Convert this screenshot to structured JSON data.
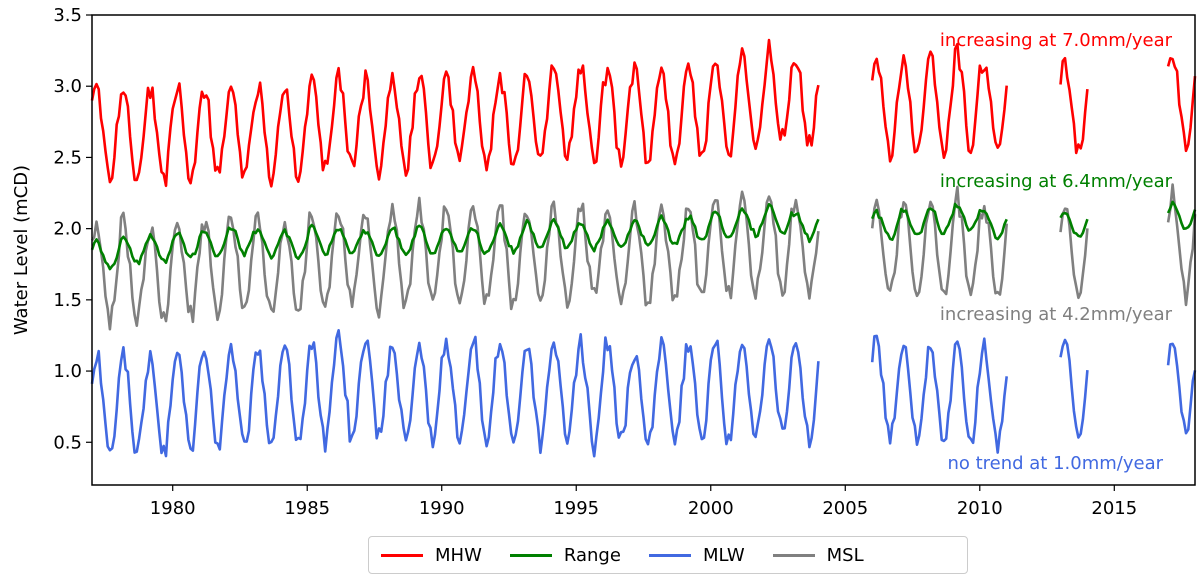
{
  "chart_data": {
    "type": "line",
    "title": "",
    "xlabel": "",
    "ylabel": "Water Level (mCD)",
    "xlim": [
      1977.0,
      2018.0
    ],
    "ylim": [
      0.2,
      3.5
    ],
    "x_ticks": [
      1980,
      1985,
      1990,
      1995,
      2000,
      2005,
      2010,
      2015
    ],
    "y_ticks": [
      0.5,
      1.0,
      1.5,
      2.0,
      2.5,
      3.0,
      3.5
    ],
    "y_tick_labels": [
      "0.5",
      "1.0",
      "1.5",
      "2.0",
      "2.5",
      "3.0",
      "3.5"
    ],
    "grid": false,
    "legend_position": "bottom-center",
    "sampling": "monthly",
    "data_segments": [
      [
        1977.0,
        2004.0
      ],
      [
        2006.0,
        2011.0
      ],
      [
        2013.0,
        2014.0
      ],
      [
        2017.0,
        2018.0
      ]
    ],
    "series": [
      {
        "name": "MHW",
        "color": "#ff0000",
        "mean": 2.75,
        "amplitude": 0.32,
        "trend_mm_per_year": 7.0,
        "seasonal_peak_month": 2,
        "year_values": [
          2.68,
          2.66,
          2.66,
          2.67,
          2.69,
          2.7,
          2.68,
          2.67,
          2.72,
          2.74,
          2.73,
          2.74,
          2.76,
          2.78,
          2.77,
          2.76,
          2.78,
          2.8,
          2.82,
          2.79,
          2.78,
          2.8,
          2.84,
          2.86,
          2.9,
          2.93,
          2.88,
          null,
          null,
          2.87,
          2.85,
          2.87,
          2.91,
          2.84,
          null,
          null,
          2.86,
          null,
          null,
          null,
          2.92
        ]
      },
      {
        "name": "Range",
        "color": "#008000",
        "mean": 1.92,
        "amplitude": 0.09,
        "trend_mm_per_year": 6.4,
        "seasonal_peak_month": 2,
        "year_values": [
          1.81,
          1.85,
          1.86,
          1.88,
          1.9,
          1.92,
          1.9,
          1.89,
          1.92,
          1.91,
          1.9,
          1.91,
          1.92,
          1.92,
          1.91,
          1.93,
          1.95,
          1.96,
          1.95,
          1.96,
          1.97,
          1.98,
          2.0,
          2.03,
          2.05,
          2.06,
          2.02,
          null,
          null,
          2.02,
          2.04,
          2.06,
          2.08,
          2.03,
          null,
          null,
          2.03,
          null,
          null,
          null,
          2.08
        ]
      },
      {
        "name": "MLW",
        "color": "#4169e1",
        "mean": 0.83,
        "amplitude": 0.34,
        "trend_mm_per_year": 1.0,
        "seasonal_peak_month": 2,
        "year_values": [
          0.78,
          0.78,
          0.77,
          0.8,
          0.81,
          0.82,
          0.8,
          0.82,
          0.86,
          0.88,
          0.87,
          0.85,
          0.86,
          0.87,
          0.86,
          0.85,
          0.85,
          0.86,
          0.84,
          0.85,
          0.81,
          0.84,
          0.86,
          0.85,
          0.88,
          0.9,
          0.86,
          null,
          null,
          0.87,
          0.85,
          0.84,
          0.86,
          0.82,
          null,
          null,
          0.86,
          null,
          null,
          null,
          0.88
        ]
      },
      {
        "name": "MSL",
        "color": "#808080",
        "mean": 1.79,
        "amplitude": 0.33,
        "trend_mm_per_year": 4.2,
        "seasonal_peak_month": 2,
        "year_values": [
          1.7,
          1.7,
          1.7,
          1.72,
          1.74,
          1.75,
          1.73,
          1.73,
          1.78,
          1.8,
          1.79,
          1.79,
          1.81,
          1.82,
          1.81,
          1.8,
          1.81,
          1.82,
          1.82,
          1.81,
          1.79,
          1.81,
          1.84,
          1.86,
          1.89,
          1.91,
          1.86,
          null,
          null,
          1.86,
          1.84,
          1.85,
          1.88,
          1.82,
          null,
          null,
          1.85,
          null,
          null,
          null,
          1.89
        ]
      }
    ],
    "annotations": [
      {
        "text": "increasing at 7.0mm/year",
        "color": "#ff0000"
      },
      {
        "text": "increasing at 6.4mm/year",
        "color": "#008000"
      },
      {
        "text": "increasing at 4.2mm/year",
        "color": "#808080"
      },
      {
        "text": "no trend at 1.0mm/year",
        "color": "#4169e1"
      }
    ]
  },
  "legend": {
    "items": [
      {
        "label": "MHW",
        "color": "#ff0000"
      },
      {
        "label": "Range",
        "color": "#008000"
      },
      {
        "label": "MLW",
        "color": "#4169e1"
      },
      {
        "label": "MSL",
        "color": "#808080"
      }
    ]
  }
}
